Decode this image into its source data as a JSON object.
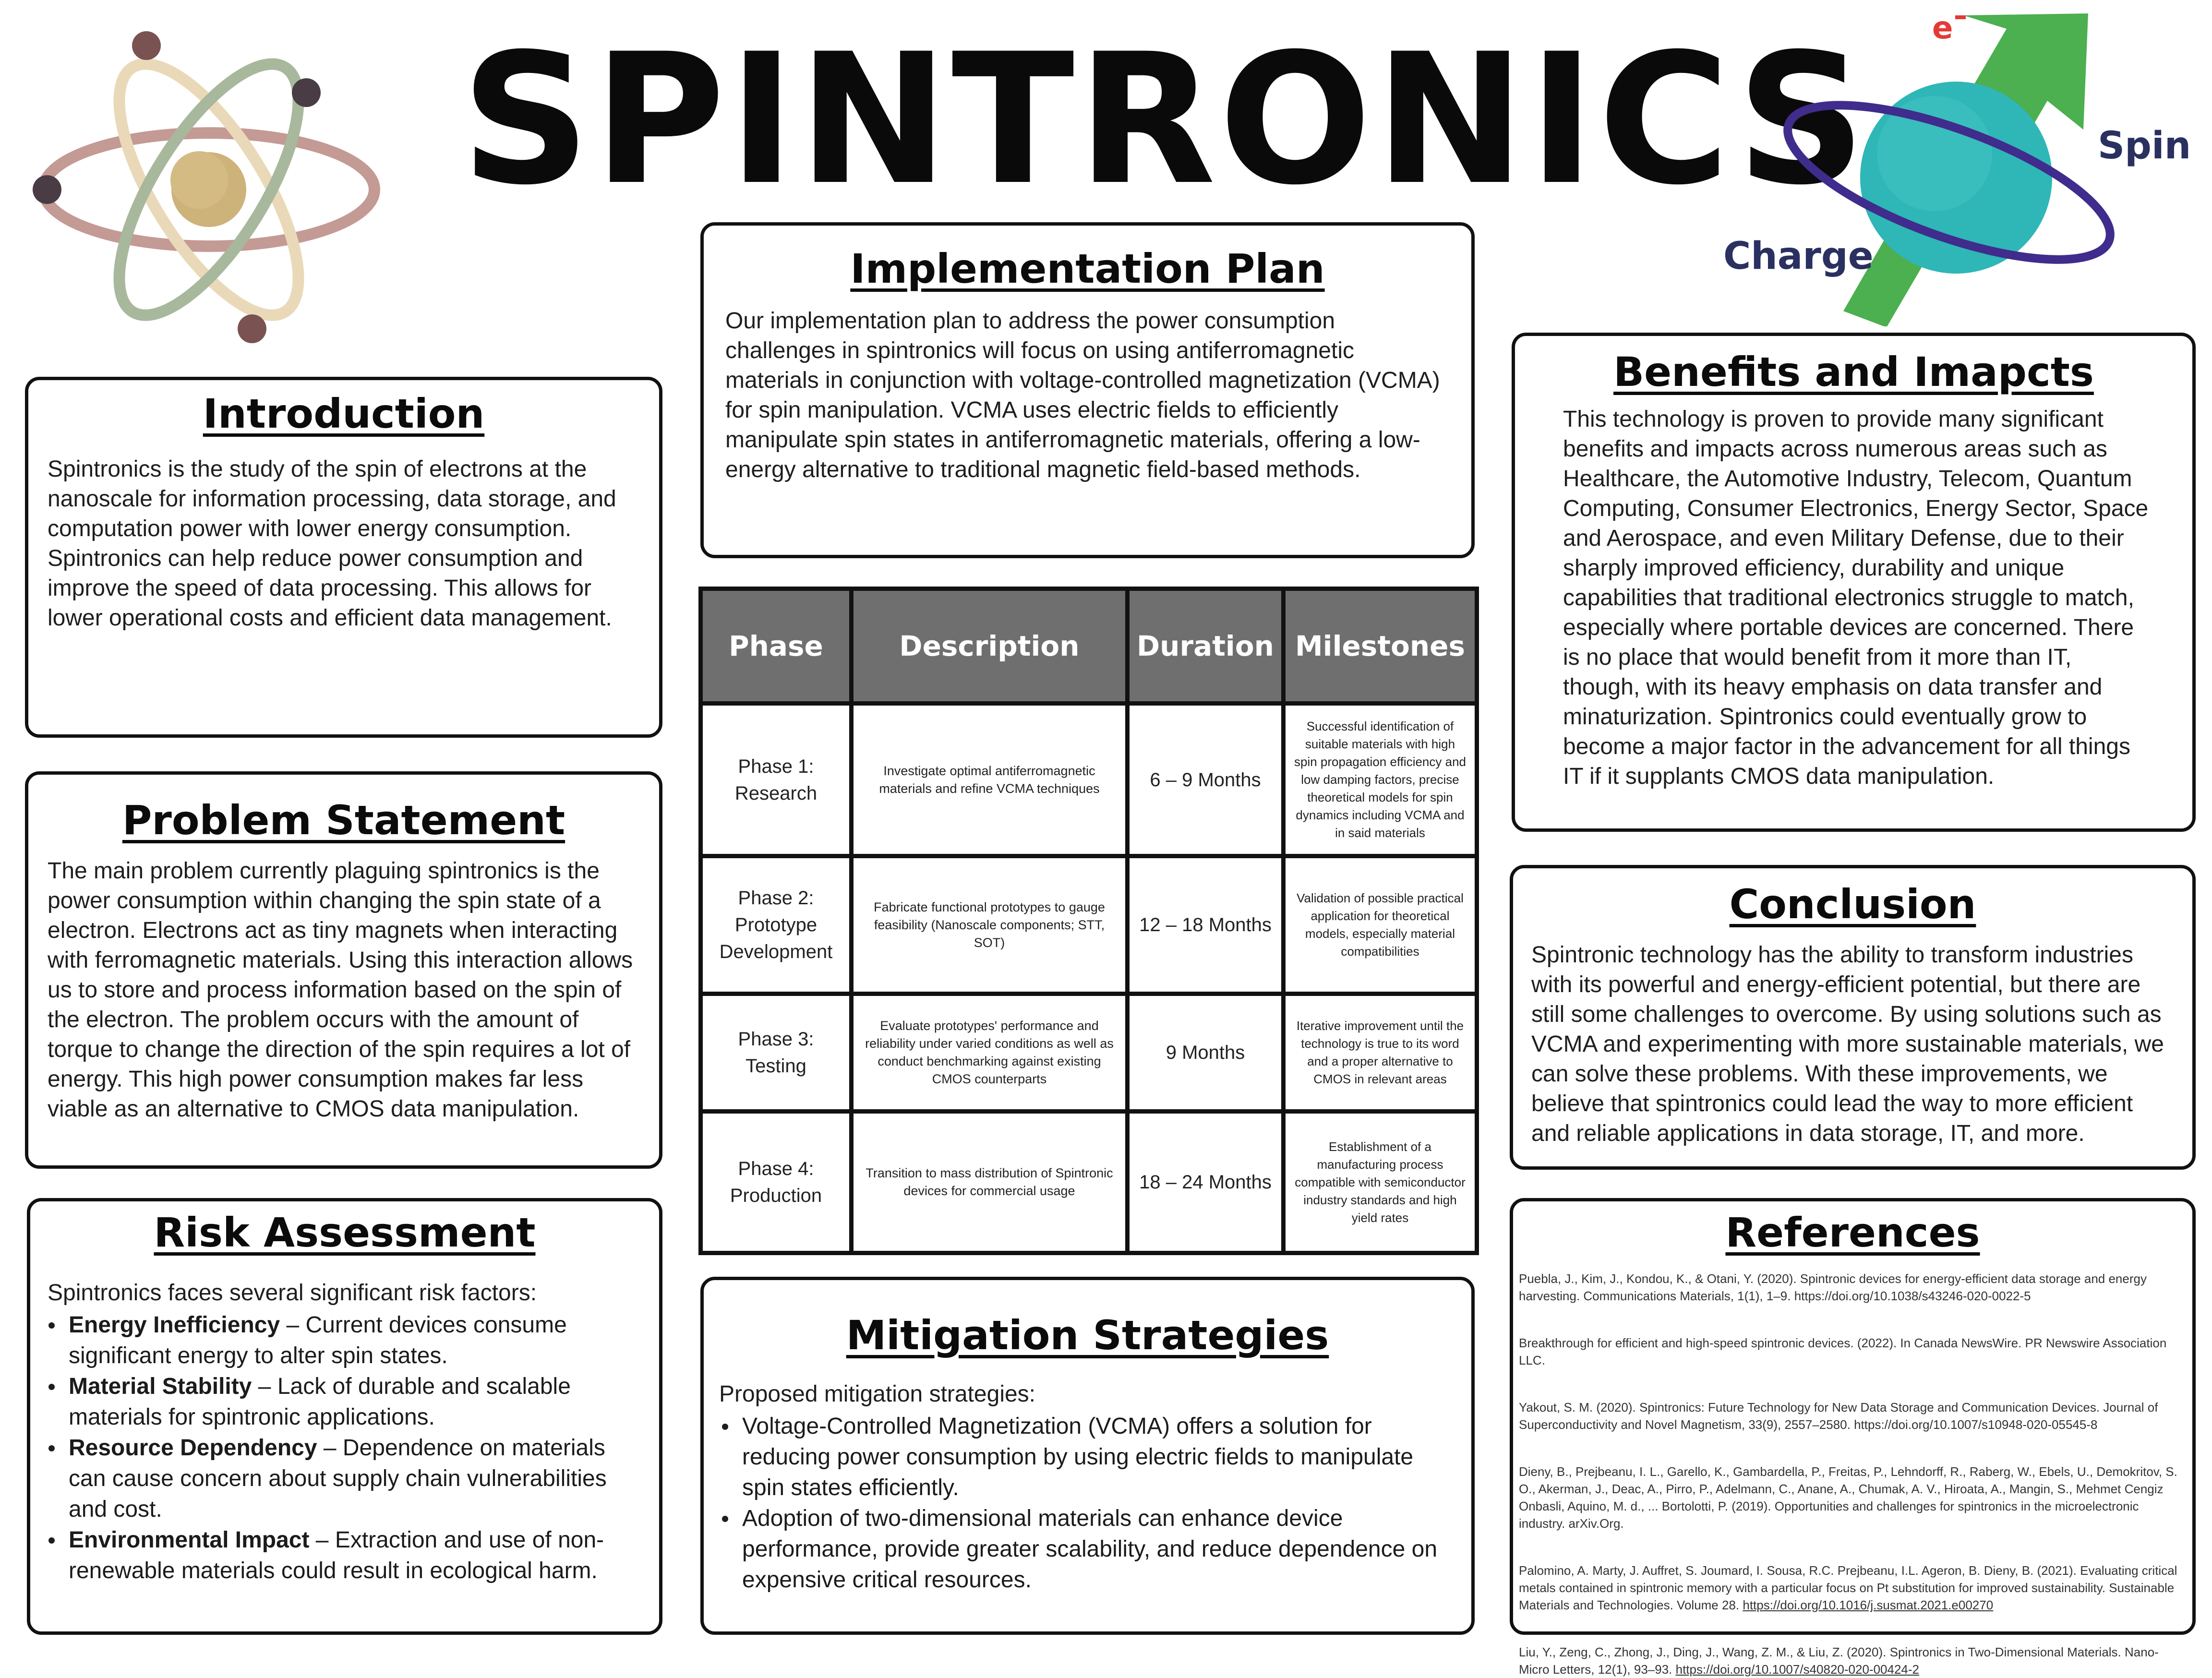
{
  "title": "SPINTRONICS",
  "graphic": {
    "electron_label": "e",
    "spin_label": "Spin",
    "charge_label": "Charge"
  },
  "introduction": {
    "heading": "Introduction",
    "text": "Spintronics is the study of the spin of electrons at the nanoscale for information processing, data storage, and computation power with lower energy consumption. Spintronics can help reduce power consumption and improve the speed of data processing. This allows for lower operational costs and efficient data management."
  },
  "problem": {
    "heading": "Problem Statement",
    "text": "The main problem currently plaguing spintronics is the power consumption within changing the spin state of a electron. Electrons act as tiny magnets when interacting with ferromagnetic materials. Using this interaction allows us to store and process information based on the spin of the electron. The problem occurs with the amount of torque to change the direction of the spin requires a lot of energy. This high power consumption makes far less viable as an alternative to CMOS data manipulation."
  },
  "risk": {
    "heading": "Risk Assessment",
    "intro": "Spintronics faces several significant risk factors:",
    "items": [
      {
        "term": "Energy Inefficiency",
        "text": " – Current devices consume significant energy to alter spin states."
      },
      {
        "term": "Material Stability",
        "text": " – Lack of durable and scalable materials for spintronic applications."
      },
      {
        "term": "Resource Dependency",
        "text": " – Dependence on materials can cause concern about supply chain vulnerabilities and cost."
      },
      {
        "term": "Environmental Impact",
        "text": " – Extraction and use of non-renewable materials could result in ecological harm."
      }
    ]
  },
  "implementation": {
    "heading": "Implementation Plan",
    "text": "Our implementation plan to address the power consumption challenges in spintronics will focus on using antiferromagnetic materials in conjunction with voltage-controlled magnetization (VCMA) for spin manipulation. VCMA uses electric fields to efficiently manipulate spin states in antiferromagnetic materials, offering a low-energy alternative to traditional magnetic field-based methods."
  },
  "table": {
    "headers": [
      "Phase",
      "Description",
      "Duration",
      "Milestones"
    ],
    "rows": [
      {
        "phase": "Phase 1: Research",
        "description": "Investigate optimal antiferromagnetic materials and refine VCMA techniques",
        "duration": "6 – 9 Months",
        "milestones": "Successful identification of suitable materials with high spin propagation efficiency and low damping factors, precise theoretical models for spin dynamics including VCMA and in said materials"
      },
      {
        "phase": "Phase 2: Prototype Development",
        "description": "Fabricate functional prototypes to gauge feasibility (Nanoscale components; STT, SOT)",
        "duration": "12 – 18 Months",
        "milestones": "Validation of possible practical application for theoretical models, especially material compatibilities"
      },
      {
        "phase": "Phase 3: Testing",
        "description": "Evaluate prototypes' performance and reliability under varied conditions as well as conduct benchmarking against existing CMOS counterparts",
        "duration": "9 Months",
        "milestones": "Iterative improvement until the technology is true to its word and a proper alternative to CMOS in relevant areas"
      },
      {
        "phase": "Phase 4: Production",
        "description": "Transition to mass distribution of Spintronic devices for commercial usage",
        "duration": "18 – 24 Months",
        "milestones": "Establishment of a manufacturing process compatible with semiconductor industry standards and high yield rates"
      }
    ]
  },
  "mitigation": {
    "heading": "Mitigation Strategies",
    "intro": "Proposed mitigation strategies:",
    "items": [
      "Voltage-Controlled Magnetization (VCMA) offers a solution for reducing power consumption by using electric fields to manipulate spin states efficiently.",
      "Adoption of two-dimensional materials can enhance device performance, provide greater scalability, and reduce dependence on expensive critical resources."
    ]
  },
  "benefits": {
    "heading": "Benefits and Imapcts",
    "text": "This technology is proven to provide many significant benefits and impacts across numerous areas such as Healthcare,  the Automotive Industry, Telecom, Quantum Computing, Consumer Electronics, Energy Sector, Space and Aerospace, and even Military Defense, due to their sharply improved efficiency, durability and unique capabilities that traditional electronics struggle to match, especially where portable devices are concerned. There is no place that would benefit from it more than IT, though,  with its heavy emphasis on data transfer and minaturization. Spintronics could eventually grow to become a major factor in the advancement for all things IT if it supplants CMOS data manipulation."
  },
  "conclusion": {
    "heading": "Conclusion",
    "text": "Spintronic technology has the ability to transform industries with its powerful and energy-efficient potential, but there are still some challenges to overcome. By using solutions such as VCMA and experimenting with more sustainable materials, we can solve these problems. With these improvements, we believe that spintronics could lead the way to more efficient and reliable applications in data storage, IT, and more."
  },
  "references": {
    "heading": "References",
    "items": [
      {
        "text": "Puebla, J., Kim, J., Kondou, K., & Otani, Y. (2020). Spintronic       devices for energy-efficient data storage and energy harvesting. Communications Materials, 1(1), 1–9. https://doi.org/10.1038/s43246-020-0022-5",
        "link": ""
      },
      {
        "text": "Breakthrough for efficient and high-speed spintronic devices. (2022). In Canada NewsWire. PR Newswire Association LLC.",
        "link": ""
      },
      {
        "text": "Yakout, S. M. (2020). Spintronics: Future Technology for New Data Storage and Communication Devices. Journal of Superconductivity and Novel Magnetism, 33(9), 2557–2580. https://doi.org/10.1007/s10948-020-05545-8",
        "link": ""
      },
      {
        "text": "Dieny, B., Prejbeanu, I. L., Garello, K., Gambardella, P., Freitas, P., Lehndorff, R., Raberg, W., Ebels, U., Demokritov, S. O., Akerman, J., Deac, A., Pirro, P., Adelmann, C., Anane, A., Chumak, A. V., Hiroata, A., Mangin, S., Mehmet Cengiz Onbasli, Aquino, M. d., ... Bortolotti, P. (2019). Opportunities and challenges for spintronics in the microelectronic industry. arXiv.Org.",
        "link": ""
      },
      {
        "text": "Palomino, A. Marty, J. Auffret, S. Joumard, I. Sousa, R.C. Prejbeanu, I.L. Ageron, B. Dieny, B. (2021). Evaluating critical metals contained in spintronic memory with a particular focus on Pt substitution for improved sustainability. Sustainable Materials and Technologies. Volume 28. ",
        "link": "https://doi.org/10.1016/j.susmat.2021.e00270"
      },
      {
        "text": "Liu, Y., Zeng, C., Zhong, J., Ding, J., Wang, Z. M., & Liu, Z. (2020). Spintronics in Two-Dimensional Materials. Nano-Micro Letters, 12(1), 93–93. ",
        "link": "https://doi.org/10.1007/s40820-020-00424-2"
      }
    ]
  },
  "colors": {
    "table_header_bg": "#6f6f6f",
    "atom_nucleus": "#cdb27a",
    "atom_orbit_rose": "#c49a94",
    "atom_orbit_beige": "#ead9b8",
    "atom_orbit_sage": "#a8b89c",
    "sphere": "#2fb6b7",
    "arrow_green": "#4caf50",
    "orbit_purple": "#3f2c8c",
    "electron_red": "#e53935",
    "label_navy": "#2a3060"
  },
  "icons": [
    "atom-icon",
    "spin-sphere-icon"
  ]
}
